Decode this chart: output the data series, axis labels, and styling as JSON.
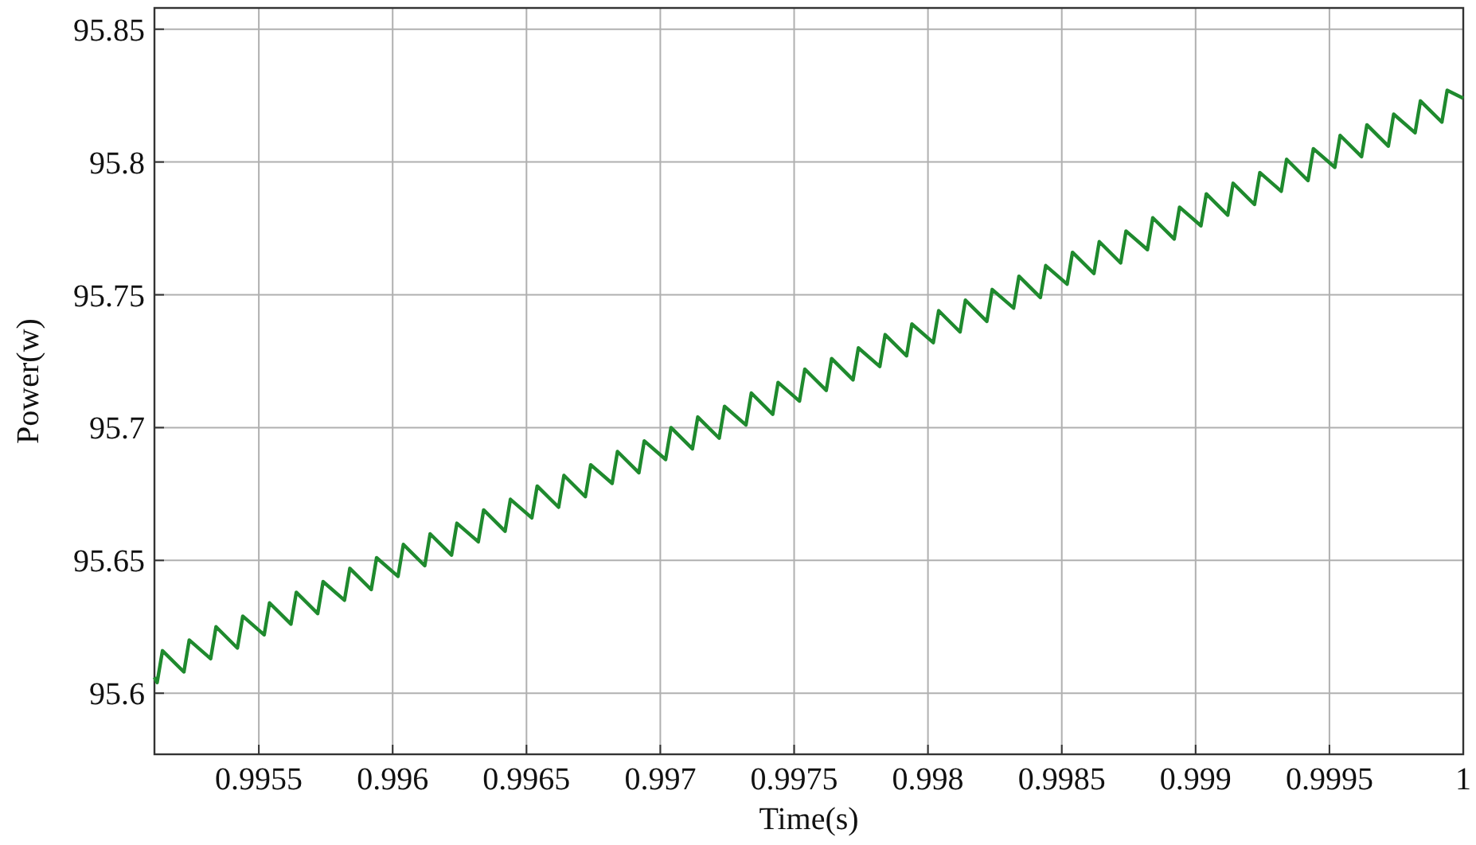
{
  "chart_data": {
    "type": "line",
    "xlabel": "Time(s)",
    "ylabel": "Power(w)",
    "xlim": [
      0.99511,
      1
    ],
    "ylim": [
      95.577,
      95.858
    ],
    "xticks": [
      0.9955,
      0.996,
      0.9965,
      0.997,
      0.9975,
      0.998,
      0.9985,
      0.999,
      0.9995,
      1
    ],
    "yticks": [
      95.6,
      95.65,
      95.7,
      95.75,
      95.8,
      95.85
    ],
    "grid": true,
    "line_style": "solid",
    "series": [
      {
        "color": "#1f8a2e",
        "x": [
          0.99511,
          0.99512,
          0.99514,
          0.99522,
          0.99524,
          0.99532,
          0.99534,
          0.99542,
          0.99544,
          0.99552,
          0.99554,
          0.99562,
          0.99564,
          0.99572,
          0.99574,
          0.99582,
          0.99584,
          0.99592,
          0.99594,
          0.99602,
          0.99604,
          0.99612,
          0.99614,
          0.99622,
          0.99624,
          0.99632,
          0.99634,
          0.99642,
          0.99644,
          0.99652,
          0.99654,
          0.99662,
          0.99664,
          0.99672,
          0.99674,
          0.99682,
          0.99684,
          0.99692,
          0.99694,
          0.99702,
          0.99704,
          0.99712,
          0.99714,
          0.99722,
          0.99724,
          0.99732,
          0.99734,
          0.99742,
          0.99744,
          0.99752,
          0.99754,
          0.99762,
          0.99764,
          0.99772,
          0.99774,
          0.99782,
          0.99784,
          0.99792,
          0.99794,
          0.99802,
          0.99804,
          0.99812,
          0.99814,
          0.99822,
          0.99824,
          0.99832,
          0.99834,
          0.99842,
          0.99844,
          0.99852,
          0.99854,
          0.99862,
          0.99864,
          0.99872,
          0.99874,
          0.99882,
          0.99884,
          0.99892,
          0.99894,
          0.99902,
          0.99904,
          0.99912,
          0.99914,
          0.99922,
          0.99924,
          0.99932,
          0.99934,
          0.99942,
          0.99944,
          0.99952,
          0.99954,
          0.99962,
          0.99964,
          0.99972,
          0.99974,
          0.99982,
          0.99984,
          0.99992,
          0.99994,
          1
        ],
        "values": [
          95.606,
          95.604,
          95.616,
          95.608,
          95.62,
          95.613,
          95.625,
          95.617,
          95.629,
          95.622,
          95.634,
          95.626,
          95.638,
          95.63,
          95.642,
          95.635,
          95.647,
          95.639,
          95.651,
          95.644,
          95.656,
          95.648,
          95.66,
          95.652,
          95.664,
          95.657,
          95.669,
          95.661,
          95.673,
          95.666,
          95.678,
          95.67,
          95.682,
          95.674,
          95.686,
          95.679,
          95.691,
          95.683,
          95.695,
          95.688,
          95.7,
          95.692,
          95.704,
          95.696,
          95.708,
          95.701,
          95.713,
          95.705,
          95.717,
          95.71,
          95.722,
          95.714,
          95.726,
          95.718,
          95.73,
          95.723,
          95.735,
          95.727,
          95.739,
          95.732,
          95.744,
          95.736,
          95.748,
          95.74,
          95.752,
          95.745,
          95.757,
          95.749,
          95.761,
          95.754,
          95.766,
          95.758,
          95.77,
          95.762,
          95.774,
          95.767,
          95.779,
          95.771,
          95.783,
          95.776,
          95.788,
          95.78,
          95.792,
          95.784,
          95.796,
          95.789,
          95.801,
          95.793,
          95.805,
          95.798,
          95.81,
          95.802,
          95.814,
          95.806,
          95.818,
          95.811,
          95.823,
          95.815,
          95.827,
          95.824
        ]
      }
    ]
  }
}
